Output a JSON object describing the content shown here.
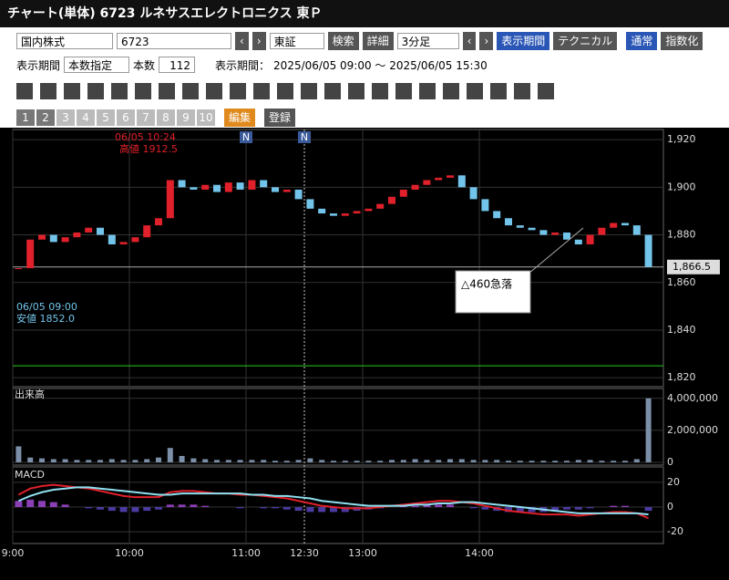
{
  "header": {
    "title": "チャート(単体) 6723 ルネサスエレクトロニクス 東Ｐ"
  },
  "toolbar": {
    "market": "国内株式",
    "code": "6723",
    "exchange": "東証",
    "search": "検索",
    "detail": "詳細",
    "interval": "3分足",
    "period_button": "表示期間",
    "technical": "テクニカル",
    "normal": "通常",
    "index_button": "指数化"
  },
  "period_row": {
    "label": "表示期間",
    "mode": "本数指定",
    "count_label": "本数",
    "count": 112,
    "range_label": "表示期間：",
    "range": "2025/06/05 09:00 ～ 2025/06/05 15:30"
  },
  "pages": {
    "numbers": [
      1,
      2,
      3,
      4,
      5,
      6,
      7,
      8,
      9,
      10
    ],
    "edit": "編集",
    "register": "登録"
  },
  "chart_data": {
    "type": "candlestick",
    "categories": [
      "9:00",
      null,
      null,
      null,
      null,
      null,
      null,
      null,
      null,
      null,
      "10:00",
      null,
      null,
      null,
      null,
      null,
      null,
      null,
      null,
      null,
      "11:00",
      null,
      null,
      null,
      null,
      "12:30",
      null,
      null,
      null,
      null,
      "13:00",
      null,
      null,
      null,
      null,
      null,
      null,
      null,
      null,
      null,
      "14:00",
      null,
      null,
      null,
      null,
      null,
      null,
      null,
      null,
      null,
      null,
      null,
      null,
      null,
      null
    ],
    "closes": [
      1866,
      1878,
      1880,
      1877,
      1879,
      1881,
      1883,
      1880,
      1876,
      1877,
      1879,
      1884,
      1887,
      1903,
      1900,
      1899,
      1901,
      1898,
      1902,
      1899,
      1903,
      1900,
      1898,
      1899,
      1895,
      1891,
      1889,
      1888,
      1889,
      1890,
      1891,
      1893,
      1896,
      1899,
      1901,
      1903,
      1904,
      1905,
      1900,
      1895,
      1890,
      1887,
      1884,
      1883,
      1882,
      1880,
      1881,
      1878,
      1876,
      1880,
      1883,
      1885,
      1884,
      1880,
      1866.5
    ],
    "ylim": [
      1817,
      1923.5
    ],
    "yticks": [
      {
        "value": 1820,
        "label": "1,820"
      },
      {
        "value": 1840,
        "label": "1,840"
      },
      {
        "value": 1860,
        "label": "1,860"
      },
      {
        "value": 1880,
        "label": "1,880"
      },
      {
        "value": 1900,
        "label": "1,900"
      },
      {
        "value": 1920,
        "label": "1,920"
      }
    ],
    "last": {
      "value": 1866.5,
      "label": "1,866.5"
    },
    "support_line": 1825,
    "high_note": {
      "date": "06/05 10:24",
      "text": "高値 1912.5"
    },
    "low_note": {
      "date": "06/05 09:00",
      "text": "安値 1852.0"
    },
    "news_marker": "N",
    "callout": "△460急落",
    "volume": {
      "title": "出来高",
      "values": [
        1000000,
        300000,
        250000,
        200000,
        200000,
        150000,
        150000,
        150000,
        200000,
        150000,
        150000,
        200000,
        300000,
        900000,
        400000,
        250000,
        200000,
        150000,
        150000,
        150000,
        150000,
        150000,
        100000,
        100000,
        150000,
        250000,
        150000,
        100000,
        100000,
        100000,
        100000,
        100000,
        150000,
        150000,
        200000,
        150000,
        150000,
        200000,
        200000,
        150000,
        150000,
        150000,
        100000,
        100000,
        100000,
        100000,
        100000,
        100000,
        150000,
        150000,
        100000,
        100000,
        100000,
        200000,
        4000000
      ],
      "ylim": [
        0,
        4500000
      ],
      "yticks": [
        {
          "value": 0,
          "label": "0"
        },
        {
          "value": 2000000,
          "label": "2,000,000"
        },
        {
          "value": 4000000,
          "label": "4,000,000"
        }
      ]
    },
    "macd": {
      "title": "MACD",
      "macd": [
        10,
        15,
        17,
        18,
        17,
        16,
        15,
        13,
        11,
        9,
        8,
        8,
        8,
        12,
        13,
        13,
        12,
        11,
        11,
        10,
        10,
        9,
        8,
        7,
        5,
        3,
        1,
        0,
        -1,
        -1,
        -1,
        0,
        1,
        2,
        3,
        4,
        5,
        5,
        4,
        3,
        1,
        -1,
        -3,
        -4,
        -5,
        -6,
        -6,
        -6,
        -7,
        -6,
        -5,
        -4,
        -4,
        -5,
        -9
      ],
      "signal": [
        5,
        9,
        12,
        14,
        15,
        16,
        16,
        15,
        14,
        13,
        12,
        11,
        10,
        10,
        11,
        11,
        11,
        11,
        11,
        11,
        10,
        10,
        9,
        9,
        8,
        7,
        5,
        4,
        3,
        2,
        1,
        1,
        1,
        1,
        2,
        2,
        3,
        3,
        4,
        4,
        3,
        2,
        1,
        0,
        -1,
        -2,
        -3,
        -4,
        -5,
        -5,
        -5,
        -5,
        -5,
        -5,
        -6
      ],
      "ylim": [
        -28,
        31
      ],
      "yticks": [
        -20,
        0,
        20
      ]
    }
  }
}
